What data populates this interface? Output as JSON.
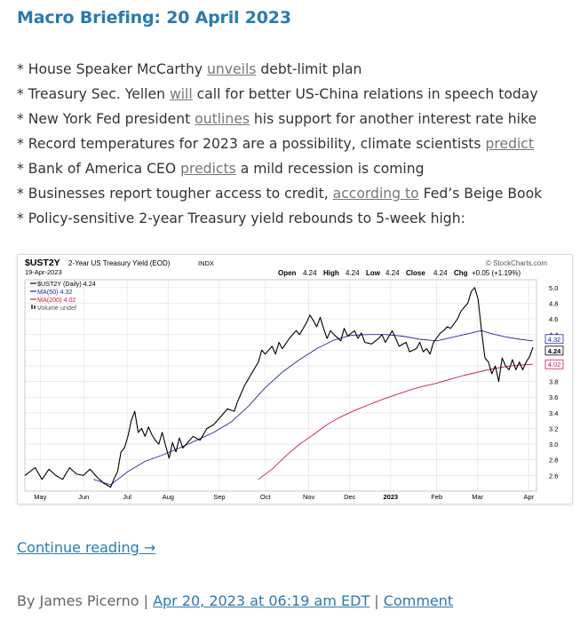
{
  "post": {
    "title": "Macro Briefing: 20 April 2023",
    "bullets": [
      {
        "pre": "* House Speaker McCarthy ",
        "link": "unveils",
        "post": " debt-limit plan"
      },
      {
        "pre": "* Treasury Sec. Yellen ",
        "link": "will",
        "post": " call for better US-China relations in speech today"
      },
      {
        "pre": "* New York Fed president ",
        "link": "outlines",
        "post": " his support for another interest rate hike"
      },
      {
        "pre": "* Record temperatures for 2023 are a possibility, climate scientists ",
        "link": "predict",
        "post": ""
      },
      {
        "pre": "* Bank of America CEO ",
        "link": "predicts",
        "post": " a mild recession is coming"
      },
      {
        "pre": "* Businesses report tougher access to credit, ",
        "link": "according to",
        "post": " Fed’s Beige Book"
      },
      {
        "pre": "* Policy-sensitive 2-year Treasury yield rebounds to 5-week high:",
        "link": "",
        "post": ""
      }
    ],
    "continue_label": "Continue reading →",
    "byline": {
      "prefix": "By James Picerno | ",
      "date": "Apr 20, 2023 at 06:19 am EDT",
      "sep": " | ",
      "comment": "Comment"
    }
  },
  "chart_data": {
    "type": "line",
    "symbol": "$UST2Y",
    "name": "2-Year US Treasury Yield (EOD)",
    "exchange": "INDX",
    "date": "19-Apr-2023",
    "source": "© StockCharts.com",
    "ohlc": {
      "open_label": "Open",
      "open": "4.24",
      "high_label": "High",
      "high": "4.24",
      "low_label": "Low",
      "low": "4.24",
      "close_label": "Close",
      "close": "4.24",
      "chg_label": "Chg",
      "chg": "+0.05 (+1.19%)"
    },
    "legend": [
      {
        "label": "$UST2Y (Daily) 4.24",
        "color": "#000000"
      },
      {
        "label": "MA(50) 4.32",
        "color": "#1f2a9c"
      },
      {
        "label": "MA(200) 4.02",
        "color": "#d01848"
      },
      {
        "label": "Volume undef",
        "color": "#555555"
      }
    ],
    "x_ticks": [
      "May",
      "Jun",
      "Jul",
      "Aug",
      "Sep",
      "Oct",
      "Nov",
      "Dec",
      "2023",
      "Feb",
      "Mar",
      "Apr"
    ],
    "y_ticks": [
      "5.0",
      "4.8",
      "4.6",
      "4.4",
      "4.2",
      "4.0",
      "3.8",
      "3.6",
      "3.4",
      "3.2",
      "3.0",
      "2.8",
      "2.6"
    ],
    "ylim": [
      2.4,
      5.1
    ],
    "badges": [
      {
        "label": "4.32",
        "value": 4.32,
        "color": "#1f2a9c"
      },
      {
        "label": "4.24",
        "value": 4.24,
        "color": "#000000"
      },
      {
        "label": "4.02",
        "value": 4.02,
        "color": "#d01848"
      }
    ],
    "series": [
      {
        "name": "$UST2Y",
        "color": "#000000",
        "values": [
          [
            0,
            2.6
          ],
          [
            3,
            2.7
          ],
          [
            5,
            2.55
          ],
          [
            7,
            2.68
          ],
          [
            9,
            2.6
          ],
          [
            11,
            2.55
          ],
          [
            13,
            2.7
          ],
          [
            15,
            2.62
          ],
          [
            17,
            2.6
          ],
          [
            19,
            2.68
          ],
          [
            21,
            2.58
          ],
          [
            23,
            2.5
          ],
          [
            25,
            2.45
          ],
          [
            26,
            2.56
          ],
          [
            27,
            2.65
          ],
          [
            28,
            2.9
          ],
          [
            29,
            2.95
          ],
          [
            30,
            3.1
          ],
          [
            31,
            3.3
          ],
          [
            32,
            3.42
          ],
          [
            33,
            3.15
          ],
          [
            34,
            3.2
          ],
          [
            35,
            3.1
          ],
          [
            36,
            3.22
          ],
          [
            37,
            3.12
          ],
          [
            38,
            3.05
          ],
          [
            39,
            3.0
          ],
          [
            40,
            3.15
          ],
          [
            41,
            2.98
          ],
          [
            42,
            2.82
          ],
          [
            43,
            3.02
          ],
          [
            44,
            2.9
          ],
          [
            45,
            3.08
          ],
          [
            46,
            2.95
          ],
          [
            47,
            3.0
          ],
          [
            49,
            3.1
          ],
          [
            51,
            3.05
          ],
          [
            53,
            3.2
          ],
          [
            55,
            3.25
          ],
          [
            56,
            3.3
          ],
          [
            58,
            3.4
          ],
          [
            59,
            3.45
          ],
          [
            61,
            3.42
          ],
          [
            62,
            3.55
          ],
          [
            64,
            3.75
          ],
          [
            66,
            3.9
          ],
          [
            68,
            4.05
          ],
          [
            69,
            4.2
          ],
          [
            70,
            4.15
          ],
          [
            72,
            4.25
          ],
          [
            73,
            4.15
          ],
          [
            74,
            4.3
          ],
          [
            75,
            4.22
          ],
          [
            77,
            4.35
          ],
          [
            79,
            4.45
          ],
          [
            80,
            4.4
          ],
          [
            82,
            4.55
          ],
          [
            83,
            4.65
          ],
          [
            84,
            4.58
          ],
          [
            85,
            4.5
          ],
          [
            86,
            4.62
          ],
          [
            87,
            4.48
          ],
          [
            88,
            4.35
          ],
          [
            89,
            4.45
          ],
          [
            90,
            4.4
          ],
          [
            92,
            4.32
          ],
          [
            93,
            4.48
          ],
          [
            94,
            4.38
          ],
          [
            96,
            4.45
          ],
          [
            97,
            4.35
          ],
          [
            98,
            4.42
          ],
          [
            99,
            4.3
          ],
          [
            101,
            4.28
          ],
          [
            103,
            4.35
          ],
          [
            104,
            4.4
          ],
          [
            105,
            4.3
          ],
          [
            107,
            4.45
          ],
          [
            108,
            4.35
          ],
          [
            109,
            4.25
          ],
          [
            111,
            4.3
          ],
          [
            112,
            4.18
          ],
          [
            114,
            4.22
          ],
          [
            115,
            4.3
          ],
          [
            116,
            4.18
          ],
          [
            117,
            4.22
          ],
          [
            118,
            4.15
          ],
          [
            119,
            4.3
          ],
          [
            121,
            4.42
          ],
          [
            122,
            4.45
          ],
          [
            123,
            4.5
          ],
          [
            124,
            4.48
          ],
          [
            126,
            4.6
          ],
          [
            127,
            4.7
          ],
          [
            128,
            4.75
          ],
          [
            129,
            4.8
          ],
          [
            130,
            4.95
          ],
          [
            131,
            5.0
          ],
          [
            132,
            4.85
          ],
          [
            133,
            4.45
          ],
          [
            134,
            4.1
          ],
          [
            135,
            4.05
          ],
          [
            136,
            3.9
          ],
          [
            137,
            4.0
          ],
          [
            138,
            3.8
          ],
          [
            139,
            4.1
          ],
          [
            140,
            4.0
          ],
          [
            141,
            3.95
          ],
          [
            142,
            4.08
          ],
          [
            143,
            3.95
          ],
          [
            144,
            4.05
          ],
          [
            145,
            3.95
          ],
          [
            146,
            4.05
          ],
          [
            147,
            4.12
          ],
          [
            148,
            4.24
          ]
        ]
      },
      {
        "name": "MA(50)",
        "color": "#1f2a9c",
        "values": [
          [
            20,
            2.55
          ],
          [
            25,
            2.48
          ],
          [
            30,
            2.65
          ],
          [
            35,
            2.78
          ],
          [
            40,
            2.86
          ],
          [
            45,
            2.95
          ],
          [
            50,
            3.05
          ],
          [
            55,
            3.15
          ],
          [
            60,
            3.28
          ],
          [
            65,
            3.48
          ],
          [
            70,
            3.72
          ],
          [
            75,
            3.92
          ],
          [
            80,
            4.08
          ],
          [
            85,
            4.22
          ],
          [
            90,
            4.33
          ],
          [
            95,
            4.39
          ],
          [
            100,
            4.4
          ],
          [
            105,
            4.4
          ],
          [
            110,
            4.38
          ],
          [
            115,
            4.34
          ],
          [
            120,
            4.32
          ],
          [
            125,
            4.37
          ],
          [
            130,
            4.42
          ],
          [
            133,
            4.45
          ],
          [
            136,
            4.41
          ],
          [
            140,
            4.37
          ],
          [
            144,
            4.34
          ],
          [
            148,
            4.32
          ]
        ]
      },
      {
        "name": "MA(200)",
        "color": "#d01848",
        "values": [
          [
            68,
            2.55
          ],
          [
            72,
            2.68
          ],
          [
            76,
            2.85
          ],
          [
            80,
            3.0
          ],
          [
            84,
            3.12
          ],
          [
            88,
            3.25
          ],
          [
            92,
            3.35
          ],
          [
            96,
            3.43
          ],
          [
            100,
            3.5
          ],
          [
            104,
            3.57
          ],
          [
            108,
            3.63
          ],
          [
            112,
            3.69
          ],
          [
            116,
            3.74
          ],
          [
            120,
            3.78
          ],
          [
            124,
            3.83
          ],
          [
            128,
            3.88
          ],
          [
            132,
            3.92
          ],
          [
            136,
            3.96
          ],
          [
            140,
            3.99
          ],
          [
            144,
            4.01
          ],
          [
            148,
            4.02
          ]
        ]
      }
    ]
  }
}
